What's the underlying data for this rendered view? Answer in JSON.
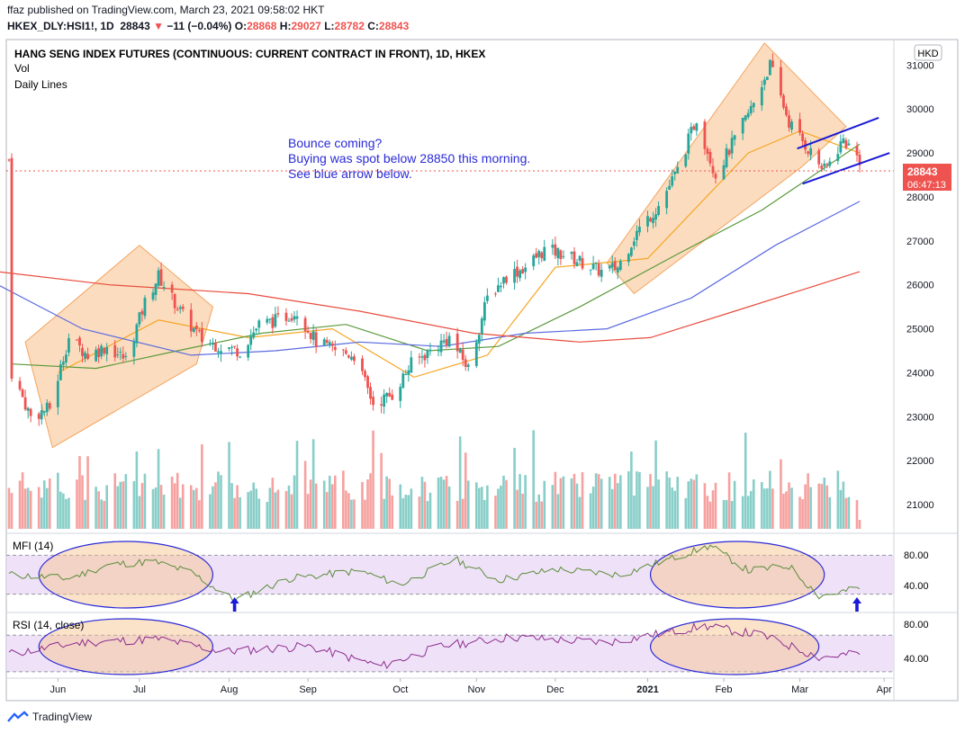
{
  "header": {
    "published": "ffaz published on TradingView.com, March 23, 2021 09:58:02 HKT",
    "symbol": "HKEX_DLY:HSI1!, 1D",
    "last": "28843",
    "change": "−11 (−0.04%)",
    "open_label": "O:",
    "open": "28868",
    "high_label": "H:",
    "high": "29027",
    "low_label": "L:",
    "low": "28782",
    "close_label": "C:",
    "close": "28843"
  },
  "legend": {
    "title": "HANG SENG INDEX FUTURES (CONTINUOUS: CURRENT CONTRACT IN FRONT), 1D, HKEX",
    "vol": "Vol",
    "lines": "Daily Lines",
    "currency": "HKD"
  },
  "annotation": {
    "line1": "Bounce coming?",
    "line2": "Buying was spot below 28850 this morning.",
    "line3": "See blue arrow below."
  },
  "price_tag": {
    "value": "28843",
    "countdown": "06:47:13"
  },
  "mfi": {
    "label": "MFI (14)",
    "ticks": [
      "80.00",
      "40.00"
    ]
  },
  "rsi": {
    "label": "RSI (14, close)",
    "ticks": [
      "80.00",
      "40.00"
    ]
  },
  "footer": {
    "brand": "TradingView"
  },
  "colors": {
    "up": "#26a69a",
    "down": "#ef5350",
    "ma_orange": "#f5a623",
    "ma_green": "#5b9a3c",
    "ma_blue": "#5b6bdf",
    "ma_red": "#e84c3d",
    "annotation": "#2a2ad8",
    "highlight": "#f7c08a",
    "indicator_band": "#e8d5f5"
  },
  "chart_data": {
    "type": "candlestick",
    "title": "HANG SENG INDEX FUTURES (CONTINUOUS: CURRENT CONTRACT IN FRONT), 1D, HKEX",
    "x_ticks": [
      "Jun",
      "Jul",
      "Aug",
      "Sep",
      "Oct",
      "Nov",
      "Dec",
      "2021",
      "Feb",
      "Mar",
      "Apr"
    ],
    "y_ticks": [
      31000,
      30000,
      29000,
      28000,
      27000,
      26000,
      25000,
      24000,
      23000,
      22000,
      21000
    ],
    "ylim": [
      20450,
      31600
    ],
    "last_price": 28843,
    "close_path": [
      {
        "date": "2020-05-15",
        "close": 24000
      },
      {
        "date": "2020-05-22",
        "close": 23000
      },
      {
        "date": "2020-05-29",
        "close": 23200
      },
      {
        "date": "2020-06-05",
        "close": 24800
      },
      {
        "date": "2020-06-12",
        "close": 24400
      },
      {
        "date": "2020-06-19",
        "close": 24600
      },
      {
        "date": "2020-06-26",
        "close": 24300
      },
      {
        "date": "2020-07-03",
        "close": 25600
      },
      {
        "date": "2020-07-08",
        "close": 26200
      },
      {
        "date": "2020-07-17",
        "close": 25300
      },
      {
        "date": "2020-07-24",
        "close": 24750
      },
      {
        "date": "2020-07-31",
        "close": 24600
      },
      {
        "date": "2020-08-07",
        "close": 24500
      },
      {
        "date": "2020-08-14",
        "close": 25100
      },
      {
        "date": "2020-08-21",
        "close": 25200
      },
      {
        "date": "2020-08-28",
        "close": 25400
      },
      {
        "date": "2020-09-04",
        "close": 24700
      },
      {
        "date": "2020-09-11",
        "close": 24500
      },
      {
        "date": "2020-09-18",
        "close": 24400
      },
      {
        "date": "2020-09-25",
        "close": 23300
      },
      {
        "date": "2020-10-02",
        "close": 23500
      },
      {
        "date": "2020-10-09",
        "close": 24200
      },
      {
        "date": "2020-10-16",
        "close": 24500
      },
      {
        "date": "2020-10-23",
        "close": 24800
      },
      {
        "date": "2020-10-30",
        "close": 24100
      },
      {
        "date": "2020-11-06",
        "close": 25700
      },
      {
        "date": "2020-11-13",
        "close": 26200
      },
      {
        "date": "2020-11-20",
        "close": 26400
      },
      {
        "date": "2020-11-27",
        "close": 26800
      },
      {
        "date": "2020-12-04",
        "close": 26700
      },
      {
        "date": "2020-12-11",
        "close": 26500
      },
      {
        "date": "2020-12-18",
        "close": 26300
      },
      {
        "date": "2020-12-24",
        "close": 26400
      },
      {
        "date": "2020-12-31",
        "close": 27200
      },
      {
        "date": "2021-01-08",
        "close": 27800
      },
      {
        "date": "2021-01-15",
        "close": 28600
      },
      {
        "date": "2021-01-22",
        "close": 29800
      },
      {
        "date": "2021-01-29",
        "close": 28500
      },
      {
        "date": "2021-02-05",
        "close": 29300
      },
      {
        "date": "2021-02-11",
        "close": 30000
      },
      {
        "date": "2021-02-18",
        "close": 31000
      },
      {
        "date": "2021-02-25",
        "close": 29700
      },
      {
        "date": "2021-03-04",
        "close": 29100
      },
      {
        "date": "2021-03-10",
        "close": 28600
      },
      {
        "date": "2021-03-17",
        "close": 29300
      },
      {
        "date": "2021-03-23",
        "close": 28843
      }
    ],
    "moving_averages": [
      {
        "color": "#f5a623",
        "points": [
          {
            "date": "2020-06-01",
            "value": 24000
          },
          {
            "date": "2020-07-08",
            "value": 25200
          },
          {
            "date": "2020-08-10",
            "value": 24800
          },
          {
            "date": "2020-09-10",
            "value": 25000
          },
          {
            "date": "2020-10-10",
            "value": 23900
          },
          {
            "date": "2020-11-06",
            "value": 24400
          },
          {
            "date": "2020-12-01",
            "value": 26400
          },
          {
            "date": "2021-01-04",
            "value": 26600
          },
          {
            "date": "2021-02-10",
            "value": 29000
          },
          {
            "date": "2021-03-01",
            "value": 29500
          },
          {
            "date": "2021-03-23",
            "value": 29000
          }
        ]
      },
      {
        "color": "#5b9a3c",
        "points": [
          {
            "date": "2020-05-15",
            "value": 24200
          },
          {
            "date": "2020-06-15",
            "value": 24100
          },
          {
            "date": "2020-07-15",
            "value": 24500
          },
          {
            "date": "2020-08-15",
            "value": 24900
          },
          {
            "date": "2020-09-15",
            "value": 25100
          },
          {
            "date": "2020-10-15",
            "value": 24500
          },
          {
            "date": "2020-11-10",
            "value": 24600
          },
          {
            "date": "2020-12-10",
            "value": 25500
          },
          {
            "date": "2021-01-15",
            "value": 26700
          },
          {
            "date": "2021-02-15",
            "value": 27700
          },
          {
            "date": "2021-03-23",
            "value": 29200
          }
        ]
      },
      {
        "color": "#5b6bdf",
        "points": [
          {
            "date": "2020-05-10",
            "value": 26000
          },
          {
            "date": "2020-06-10",
            "value": 25000
          },
          {
            "date": "2020-07-20",
            "value": 24400
          },
          {
            "date": "2020-08-20",
            "value": 24500
          },
          {
            "date": "2020-09-20",
            "value": 24700
          },
          {
            "date": "2020-10-20",
            "value": 24600
          },
          {
            "date": "2020-11-20",
            "value": 24900
          },
          {
            "date": "2020-12-20",
            "value": 25000
          },
          {
            "date": "2021-01-20",
            "value": 25700
          },
          {
            "date": "2021-02-20",
            "value": 26900
          },
          {
            "date": "2021-03-23",
            "value": 27900
          }
        ]
      },
      {
        "color": "#e84c3d",
        "points": [
          {
            "date": "2020-05-10",
            "value": 26300
          },
          {
            "date": "2020-06-20",
            "value": 26000
          },
          {
            "date": "2020-08-10",
            "value": 25800
          },
          {
            "date": "2020-09-20",
            "value": 25400
          },
          {
            "date": "2020-11-01",
            "value": 24900
          },
          {
            "date": "2020-12-10",
            "value": 24700
          },
          {
            "date": "2021-01-05",
            "value": 24800
          },
          {
            "date": "2021-02-05",
            "value": 25400
          },
          {
            "date": "2021-03-23",
            "value": 26300
          }
        ]
      }
    ],
    "mfi_path": [
      {
        "date": "2020-05-15",
        "value": 55
      },
      {
        "date": "2020-06-05",
        "value": 50
      },
      {
        "date": "2020-06-20",
        "value": 68
      },
      {
        "date": "2020-07-06",
        "value": 72
      },
      {
        "date": "2020-07-20",
        "value": 58
      },
      {
        "date": "2020-08-05",
        "value": 22
      },
      {
        "date": "2020-08-25",
        "value": 50
      },
      {
        "date": "2020-09-20",
        "value": 60
      },
      {
        "date": "2020-10-05",
        "value": 42
      },
      {
        "date": "2020-10-25",
        "value": 75
      },
      {
        "date": "2020-11-10",
        "value": 48
      },
      {
        "date": "2020-12-01",
        "value": 62
      },
      {
        "date": "2020-12-25",
        "value": 55
      },
      {
        "date": "2021-01-12",
        "value": 75
      },
      {
        "date": "2021-01-27",
        "value": 92
      },
      {
        "date": "2021-02-10",
        "value": 60
      },
      {
        "date": "2021-02-25",
        "value": 66
      },
      {
        "date": "2021-03-08",
        "value": 28
      },
      {
        "date": "2021-03-15",
        "value": 32
      },
      {
        "date": "2021-03-23",
        "value": 38
      }
    ],
    "rsi_path": [
      {
        "date": "2020-05-15",
        "value": 50
      },
      {
        "date": "2020-06-10",
        "value": 62
      },
      {
        "date": "2020-07-08",
        "value": 66
      },
      {
        "date": "2020-08-01",
        "value": 52
      },
      {
        "date": "2020-09-01",
        "value": 58
      },
      {
        "date": "2020-09-28",
        "value": 36
      },
      {
        "date": "2020-10-20",
        "value": 58
      },
      {
        "date": "2020-11-15",
        "value": 68
      },
      {
        "date": "2020-12-20",
        "value": 62
      },
      {
        "date": "2021-01-25",
        "value": 80
      },
      {
        "date": "2021-02-15",
        "value": 70
      },
      {
        "date": "2021-03-08",
        "value": 46
      },
      {
        "date": "2021-03-23",
        "value": 50
      }
    ],
    "blue_arrows_at": [
      "2020-08-05",
      "2021-03-22"
    ]
  }
}
